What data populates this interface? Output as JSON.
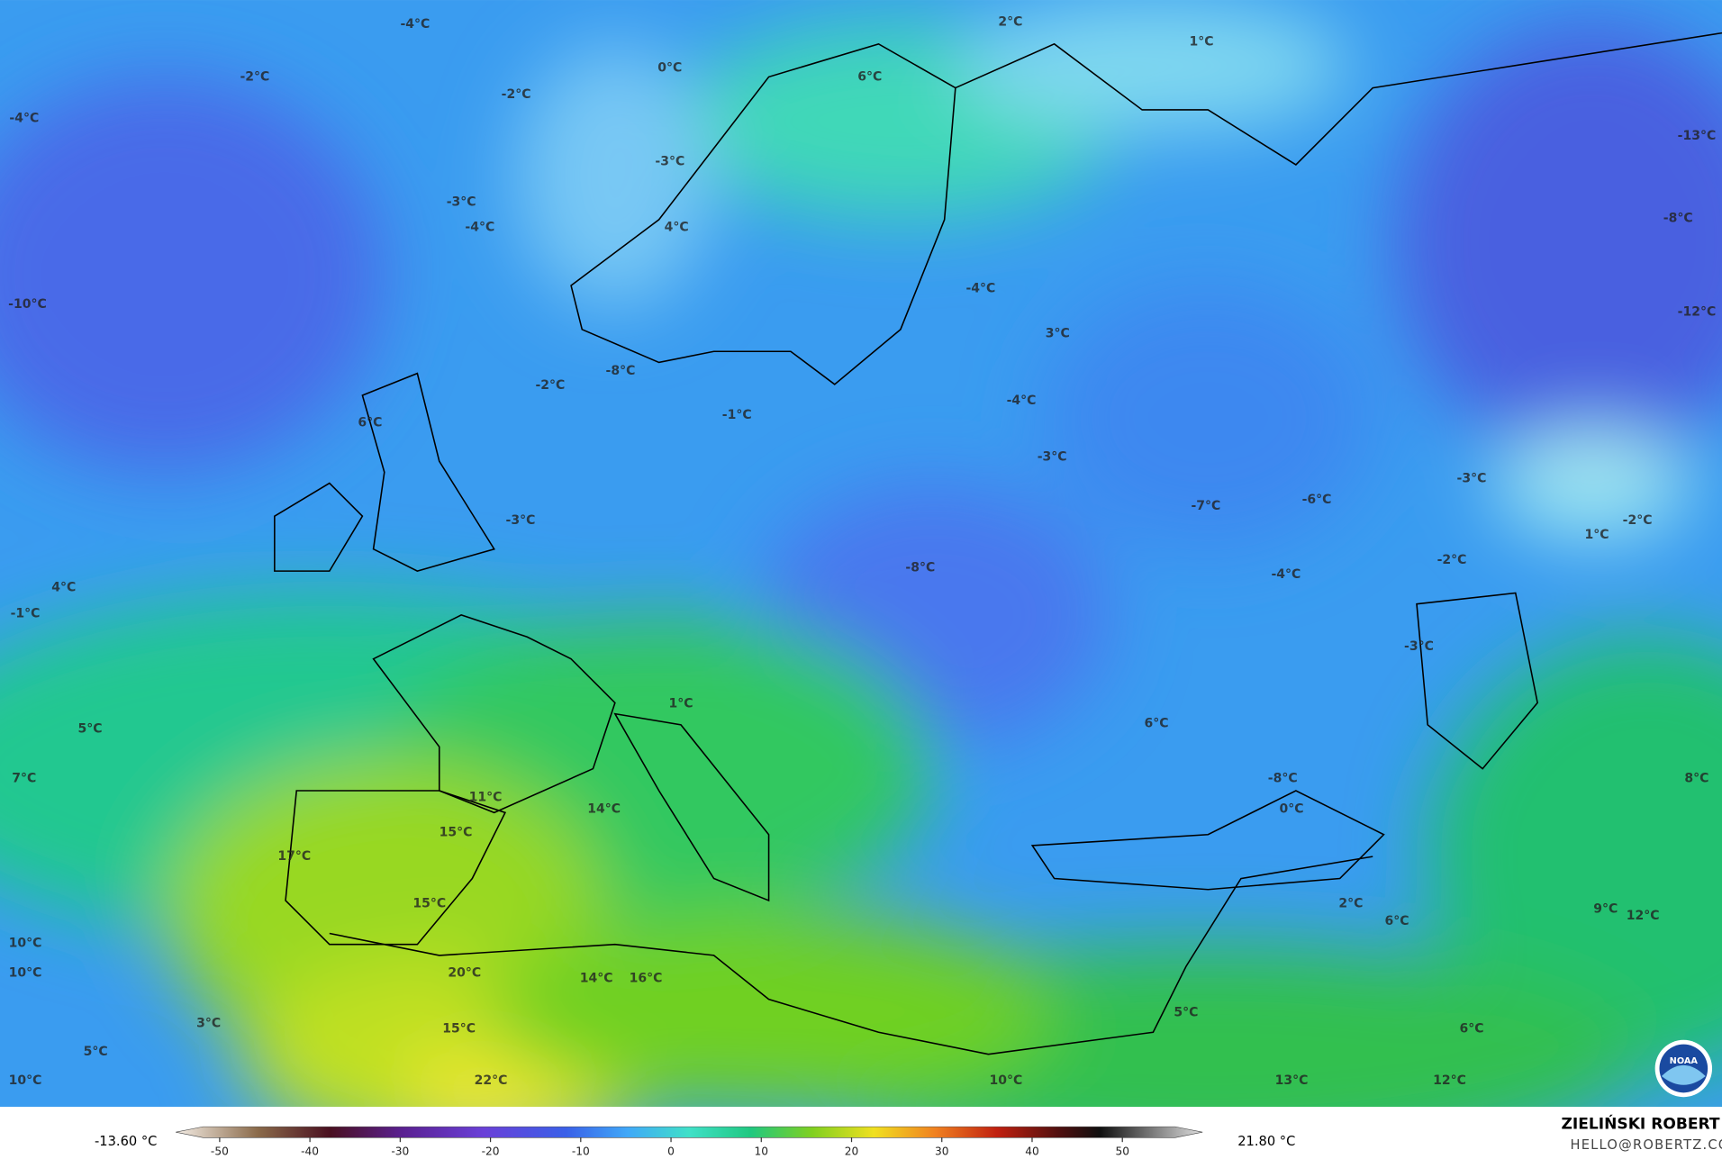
{
  "map_labels": [
    "-4°C",
    "-2°C",
    "0°C",
    "-2°C",
    "2°C",
    "1°C",
    "6°C",
    "-4°C",
    "-13°C",
    "-3°C",
    "-3°C",
    "-4°C",
    "4°C",
    "-8°C",
    "-10°C",
    "-4°C",
    "-12°C",
    "3°C",
    "-8°C",
    "-2°C",
    "-1°C",
    "6°C",
    "-4°C",
    "-3°C",
    "-3°C",
    "-7°C",
    "-6°C",
    "-3°C",
    "1°C",
    "-2°C",
    "-8°C",
    "-2°C",
    "-4°C",
    "4°C",
    "-1°C",
    "-3°C",
    "1°C",
    "6°C",
    "5°C",
    "7°C",
    "-8°C",
    "8°C",
    "0°C",
    "11°C",
    "14°C",
    "15°C",
    "17°C",
    "15°C",
    "2°C",
    "9°C",
    "12°C",
    "6°C",
    "10°C",
    "10°C",
    "20°C",
    "14°C",
    "16°C",
    "5°C",
    "3°C",
    "15°C",
    "6°C",
    "5°C",
    "10°C",
    "22°C",
    "10°C",
    "13°C",
    "12°C"
  ],
  "colorbar": {
    "min_label": "-13.60 °C",
    "max_label": "21.80 °C",
    "ticks": [
      -50,
      -40,
      -30,
      -20,
      -10,
      0,
      10,
      20,
      30,
      40,
      50
    ]
  },
  "footer": {
    "author": "ZIELIŃSKI ROBERT",
    "email": "HELLO@ROBERTZ.CO"
  }
}
